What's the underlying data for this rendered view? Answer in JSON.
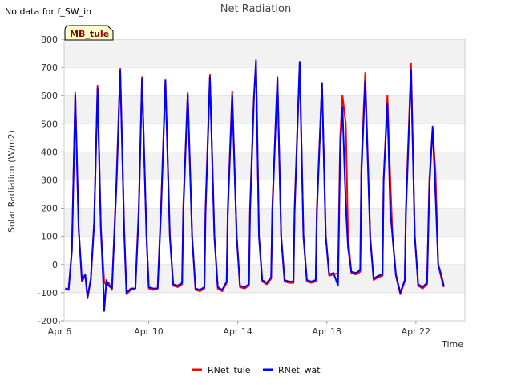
{
  "chart_data": {
    "type": "line",
    "title": "Net Radiation",
    "no_data_note": "No data for f_SW_in",
    "site_label": "MB_tule",
    "xlabel": "Time",
    "ylabel": "Solar Radiation (W/m2)",
    "xlim": [
      6.2,
      24.2
    ],
    "ylim": [
      -200,
      800
    ],
    "yticks": [
      -200,
      -100,
      0,
      100,
      200,
      300,
      400,
      500,
      600,
      700,
      800
    ],
    "xticks": [
      {
        "value": 6,
        "label": "Apr 6"
      },
      {
        "value": 10,
        "label": "Apr 10"
      },
      {
        "value": 14,
        "label": "Apr 14"
      },
      {
        "value": 18,
        "label": "Apr 18"
      },
      {
        "value": 22,
        "label": "Apr 22"
      }
    ],
    "x_unit": "day of April 2023 (fractional)",
    "series": [
      {
        "name": "RNet_tule",
        "color": "#ff0000",
        "points": [
          [
            6.25,
            -85
          ],
          [
            6.4,
            -88
          ],
          [
            6.55,
            50
          ],
          [
            6.7,
            610
          ],
          [
            6.85,
            130
          ],
          [
            7.0,
            -60
          ],
          [
            7.15,
            -40
          ],
          [
            7.25,
            -120
          ],
          [
            7.4,
            -55
          ],
          [
            7.55,
            150
          ],
          [
            7.7,
            635
          ],
          [
            7.85,
            130
          ],
          [
            8.0,
            -60
          ],
          [
            8.1,
            -75
          ],
          [
            8.2,
            -65
          ],
          [
            8.35,
            -90
          ],
          [
            8.55,
            300
          ],
          [
            8.72,
            695
          ],
          [
            8.9,
            120
          ],
          [
            9.0,
            -105
          ],
          [
            9.2,
            -90
          ],
          [
            9.4,
            -85
          ],
          [
            9.55,
            200
          ],
          [
            9.7,
            665
          ],
          [
            9.9,
            100
          ],
          [
            10.0,
            -85
          ],
          [
            10.2,
            -90
          ],
          [
            10.4,
            -85
          ],
          [
            10.55,
            200
          ],
          [
            10.75,
            655
          ],
          [
            10.95,
            100
          ],
          [
            11.1,
            -75
          ],
          [
            11.3,
            -80
          ],
          [
            11.5,
            -70
          ],
          [
            11.55,
            200
          ],
          [
            11.75,
            610
          ],
          [
            11.95,
            100
          ],
          [
            12.1,
            -90
          ],
          [
            12.3,
            -95
          ],
          [
            12.5,
            -85
          ],
          [
            12.55,
            200
          ],
          [
            12.75,
            675
          ],
          [
            12.95,
            100
          ],
          [
            13.1,
            -85
          ],
          [
            13.3,
            -95
          ],
          [
            13.5,
            -65
          ],
          [
            13.55,
            200
          ],
          [
            13.75,
            615
          ],
          [
            13.95,
            100
          ],
          [
            14.1,
            -80
          ],
          [
            14.3,
            -85
          ],
          [
            14.5,
            -75
          ],
          [
            14.55,
            200
          ],
          [
            14.72,
            590
          ],
          [
            14.82,
            720
          ],
          [
            14.95,
            100
          ],
          [
            15.1,
            -60
          ],
          [
            15.3,
            -70
          ],
          [
            15.5,
            -50
          ],
          [
            15.55,
            200
          ],
          [
            15.78,
            660
          ],
          [
            15.95,
            100
          ],
          [
            16.1,
            -60
          ],
          [
            16.3,
            -65
          ],
          [
            16.5,
            -65
          ],
          [
            16.55,
            200
          ],
          [
            16.78,
            715
          ],
          [
            16.95,
            100
          ],
          [
            17.1,
            -60
          ],
          [
            17.3,
            -65
          ],
          [
            17.5,
            -60
          ],
          [
            17.55,
            200
          ],
          [
            17.78,
            645
          ],
          [
            17.95,
            100
          ],
          [
            18.1,
            -40
          ],
          [
            18.3,
            -35
          ],
          [
            18.5,
            -30
          ],
          [
            18.6,
            450
          ],
          [
            18.7,
            600
          ],
          [
            18.85,
            500
          ],
          [
            18.95,
            100
          ],
          [
            19.1,
            -30
          ],
          [
            19.3,
            -35
          ],
          [
            19.5,
            -25
          ],
          [
            19.55,
            350
          ],
          [
            19.72,
            680
          ],
          [
            19.95,
            100
          ],
          [
            20.1,
            -55
          ],
          [
            20.3,
            -45
          ],
          [
            20.5,
            -40
          ],
          [
            20.55,
            300
          ],
          [
            20.72,
            600
          ],
          [
            20.85,
            300
          ],
          [
            20.95,
            100
          ],
          [
            21.1,
            -40
          ],
          [
            21.3,
            -105
          ],
          [
            21.5,
            -60
          ],
          [
            21.55,
            200
          ],
          [
            21.78,
            715
          ],
          [
            21.95,
            100
          ],
          [
            22.1,
            -75
          ],
          [
            22.3,
            -85
          ],
          [
            22.5,
            -70
          ],
          [
            22.6,
            300
          ],
          [
            22.75,
            480
          ],
          [
            22.88,
            330
          ],
          [
            23.0,
            0
          ],
          [
            23.15,
            -50
          ],
          [
            23.25,
            -80
          ]
        ]
      },
      {
        "name": "RNet_wat",
        "color": "#0000ff",
        "points": [
          [
            6.25,
            -85
          ],
          [
            6.4,
            -90
          ],
          [
            6.55,
            50
          ],
          [
            6.7,
            600
          ],
          [
            6.85,
            130
          ],
          [
            7.0,
            -55
          ],
          [
            7.15,
            -35
          ],
          [
            7.25,
            -115
          ],
          [
            7.4,
            -50
          ],
          [
            7.55,
            150
          ],
          [
            7.7,
            625
          ],
          [
            7.85,
            130
          ],
          [
            7.95,
            -50
          ],
          [
            8.0,
            -165
          ],
          [
            8.1,
            -55
          ],
          [
            8.2,
            -75
          ],
          [
            8.35,
            -85
          ],
          [
            8.55,
            280
          ],
          [
            8.72,
            690
          ],
          [
            8.9,
            110
          ],
          [
            9.0,
            -100
          ],
          [
            9.2,
            -85
          ],
          [
            9.4,
            -85
          ],
          [
            9.55,
            180
          ],
          [
            9.7,
            660
          ],
          [
            9.9,
            100
          ],
          [
            10.0,
            -80
          ],
          [
            10.2,
            -85
          ],
          [
            10.4,
            -85
          ],
          [
            10.55,
            180
          ],
          [
            10.75,
            652
          ],
          [
            10.95,
            100
          ],
          [
            11.1,
            -70
          ],
          [
            11.3,
            -75
          ],
          [
            11.5,
            -65
          ],
          [
            11.55,
            180
          ],
          [
            11.75,
            605
          ],
          [
            11.95,
            100
          ],
          [
            12.1,
            -85
          ],
          [
            12.3,
            -90
          ],
          [
            12.5,
            -80
          ],
          [
            12.55,
            180
          ],
          [
            12.75,
            665
          ],
          [
            12.95,
            100
          ],
          [
            13.1,
            -80
          ],
          [
            13.3,
            -90
          ],
          [
            13.5,
            -60
          ],
          [
            13.55,
            180
          ],
          [
            13.75,
            600
          ],
          [
            13.95,
            100
          ],
          [
            14.1,
            -75
          ],
          [
            14.3,
            -80
          ],
          [
            14.5,
            -70
          ],
          [
            14.55,
            180
          ],
          [
            14.72,
            580
          ],
          [
            14.82,
            725
          ],
          [
            14.95,
            100
          ],
          [
            15.1,
            -55
          ],
          [
            15.3,
            -65
          ],
          [
            15.5,
            -45
          ],
          [
            15.55,
            180
          ],
          [
            15.78,
            665
          ],
          [
            15.95,
            100
          ],
          [
            16.1,
            -55
          ],
          [
            16.3,
            -60
          ],
          [
            16.5,
            -60
          ],
          [
            16.55,
            180
          ],
          [
            16.78,
            720
          ],
          [
            16.95,
            100
          ],
          [
            17.1,
            -55
          ],
          [
            17.3,
            -60
          ],
          [
            17.5,
            -55
          ],
          [
            17.55,
            180
          ],
          [
            17.78,
            645
          ],
          [
            17.95,
            100
          ],
          [
            18.1,
            -35
          ],
          [
            18.3,
            -30
          ],
          [
            18.5,
            -75
          ],
          [
            18.6,
            400
          ],
          [
            18.7,
            560
          ],
          [
            18.85,
            210
          ],
          [
            18.95,
            60
          ],
          [
            19.1,
            -25
          ],
          [
            19.3,
            -30
          ],
          [
            19.5,
            -20
          ],
          [
            19.55,
            320
          ],
          [
            19.72,
            650
          ],
          [
            19.95,
            90
          ],
          [
            20.1,
            -50
          ],
          [
            20.3,
            -40
          ],
          [
            20.5,
            -35
          ],
          [
            20.55,
            300
          ],
          [
            20.72,
            570
          ],
          [
            20.85,
            190
          ],
          [
            20.95,
            100
          ],
          [
            21.1,
            -35
          ],
          [
            21.3,
            -100
          ],
          [
            21.5,
            -55
          ],
          [
            21.55,
            180
          ],
          [
            21.78,
            690
          ],
          [
            21.95,
            100
          ],
          [
            22.1,
            -70
          ],
          [
            22.3,
            -80
          ],
          [
            22.5,
            -65
          ],
          [
            22.6,
            270
          ],
          [
            22.75,
            490
          ],
          [
            22.88,
            250
          ],
          [
            23.0,
            0
          ],
          [
            23.15,
            -40
          ],
          [
            23.25,
            -75
          ]
        ]
      }
    ],
    "legend_position": "bottom-center"
  }
}
